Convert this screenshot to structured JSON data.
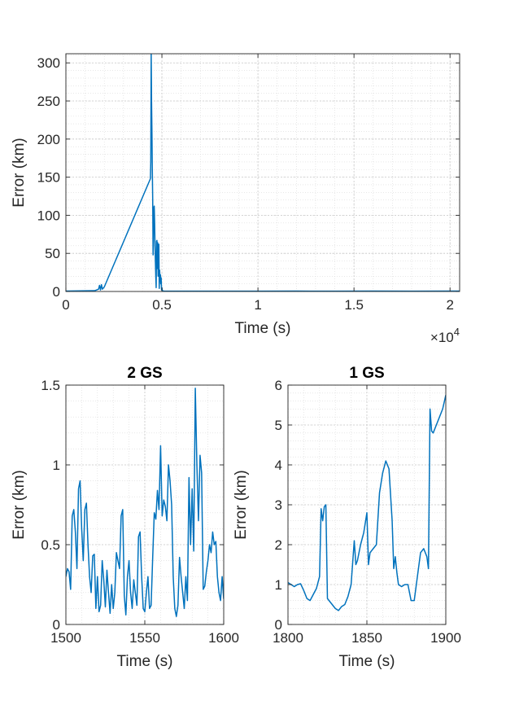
{
  "colors": {
    "series": "#0072BD",
    "axis": "#262626",
    "grid": "#d9d9d9",
    "background": "#ffffff"
  },
  "chart_data": [
    {
      "type": "line",
      "title": "",
      "xlabel": "Time (s)",
      "ylabel": "Error (km)",
      "xlim": [
        0,
        20500
      ],
      "ylim": [
        0,
        312
      ],
      "xticks": [
        0,
        5000,
        10000,
        15000,
        20000
      ],
      "xtick_labels": [
        "0",
        "0.5",
        "1",
        "1.5",
        "2"
      ],
      "x_exponent_label": "×10",
      "x_exponent_power": "4",
      "yticks": [
        0,
        50,
        100,
        150,
        200,
        250,
        300
      ],
      "ytick_labels": [
        "0",
        "50",
        "100",
        "150",
        "200",
        "250",
        "300"
      ],
      "grid": true,
      "minor_grid": true,
      "series": [
        {
          "x": [
            0,
            1500,
            1700,
            1750,
            1800,
            1850,
            1900,
            2000,
            4400,
            4420,
            4440,
            4460,
            4480,
            4500,
            4520,
            4540,
            4560,
            4580,
            4600,
            4620,
            4640,
            4660,
            4680,
            4700,
            4720,
            4740,
            4760,
            4780,
            4800,
            4820,
            4840,
            4860,
            4880,
            4900,
            4920,
            4940,
            4960,
            4980,
            5000,
            5020,
            5100,
            6000,
            8000,
            10000,
            12000,
            14000,
            16000,
            18000,
            20000,
            20500
          ],
          "y": [
            0.5,
            1,
            3,
            8,
            2,
            9,
            3,
            6,
            148,
            170,
            312,
            250,
            210,
            160,
            120,
            48,
            70,
            110,
            112,
            90,
            60,
            40,
            20,
            5,
            66,
            67,
            30,
            64,
            20,
            40,
            62,
            4,
            28,
            14,
            22,
            10,
            18,
            2,
            5,
            1,
            0.5,
            0.4,
            0.4,
            0.4,
            0.5,
            0.4,
            0.5,
            0.4,
            0.5,
            0.5
          ]
        }
      ]
    },
    {
      "type": "line",
      "title": "2 GS",
      "xlabel": "Time (s)",
      "ylabel": "Error (km)",
      "xlim": [
        1500,
        1600
      ],
      "ylim": [
        0,
        1.5
      ],
      "xticks": [
        1500,
        1550,
        1600
      ],
      "xtick_labels": [
        "1500",
        "1550",
        "1600"
      ],
      "yticks": [
        0,
        0.5,
        1,
        1.5
      ],
      "ytick_labels": [
        "0",
        "0.5",
        "1",
        "1.5"
      ],
      "grid": true,
      "minor_grid": true,
      "series": [
        {
          "x": [
            1500,
            1501,
            1502,
            1503,
            1504,
            1505,
            1506,
            1507,
            1508,
            1509,
            1510,
            1511,
            1512,
            1513,
            1514,
            1515,
            1516,
            1517,
            1518,
            1519,
            1520,
            1521,
            1522,
            1523,
            1524,
            1525,
            1526,
            1527,
            1528,
            1529,
            1530,
            1531,
            1532,
            1533,
            1534,
            1535,
            1536,
            1537,
            1538,
            1539,
            1540,
            1541,
            1542,
            1543,
            1544,
            1545,
            1546,
            1547,
            1548,
            1549,
            1550,
            1551,
            1552,
            1553,
            1554,
            1555,
            1556,
            1557,
            1558,
            1559,
            1560,
            1561,
            1562,
            1563,
            1564,
            1565,
            1566,
            1567,
            1568,
            1569,
            1570,
            1571,
            1572,
            1573,
            1574,
            1575,
            1576,
            1577,
            1578,
            1579,
            1580,
            1581,
            1582,
            1583,
            1584,
            1585,
            1586,
            1587,
            1588,
            1589,
            1590,
            1591,
            1592,
            1593,
            1594,
            1595,
            1596,
            1597,
            1598,
            1599,
            1600
          ],
          "y": [
            0.3,
            0.35,
            0.33,
            0.22,
            0.68,
            0.72,
            0.58,
            0.35,
            0.85,
            0.9,
            0.6,
            0.4,
            0.72,
            0.76,
            0.5,
            0.3,
            0.2,
            0.43,
            0.44,
            0.1,
            0.3,
            0.08,
            0.12,
            0.4,
            0.28,
            0.11,
            0.34,
            0.2,
            0.07,
            0.25,
            0.1,
            0.2,
            0.45,
            0.4,
            0.35,
            0.68,
            0.72,
            0.18,
            0.06,
            0.3,
            0.4,
            0.2,
            0.1,
            0.28,
            0.2,
            0.12,
            0.55,
            0.58,
            0.3,
            0.1,
            0.08,
            0.2,
            0.3,
            0.1,
            0.12,
            0.42,
            0.7,
            0.66,
            0.84,
            0.72,
            1.12,
            0.68,
            0.78,
            0.74,
            0.65,
            1.0,
            0.9,
            0.75,
            0.3,
            0.1,
            0.05,
            0.12,
            0.42,
            0.3,
            0.2,
            0.1,
            0.3,
            0.15,
            0.92,
            0.5,
            0.85,
            0.46,
            1.48,
            1.0,
            0.65,
            1.06,
            0.95,
            0.22,
            0.24,
            0.33,
            0.4,
            0.5,
            0.45,
            0.58,
            0.5,
            0.52,
            0.3,
            0.2,
            0.15,
            0.3,
            0.16
          ]
        }
      ]
    },
    {
      "type": "line",
      "title": "1 GS",
      "xlabel": "Time (s)",
      "ylabel": "Error (km)",
      "xlim": [
        1800,
        1900
      ],
      "ylim": [
        0,
        6
      ],
      "xticks": [
        1800,
        1850,
        1900
      ],
      "xtick_labels": [
        "1800",
        "1850",
        "1900"
      ],
      "yticks": [
        0,
        1,
        2,
        3,
        4,
        5,
        6
      ],
      "ytick_labels": [
        "0",
        "1",
        "2",
        "3",
        "4",
        "5",
        "6"
      ],
      "grid": true,
      "minor_grid": true,
      "series": [
        {
          "x": [
            1800,
            1802,
            1804,
            1806,
            1808,
            1810,
            1812,
            1814,
            1816,
            1818,
            1820,
            1821,
            1822,
            1823,
            1824,
            1825,
            1826,
            1828,
            1830,
            1832,
            1834,
            1836,
            1838,
            1840,
            1842,
            1843,
            1844,
            1846,
            1848,
            1850,
            1851,
            1852,
            1854,
            1856,
            1858,
            1860,
            1862,
            1864,
            1866,
            1867,
            1868,
            1869,
            1870,
            1872,
            1874,
            1876,
            1878,
            1880,
            1882,
            1884,
            1886,
            1888,
            1889,
            1890,
            1891,
            1892,
            1894,
            1896,
            1898,
            1900
          ],
          "y": [
            1.05,
            1.0,
            0.95,
            1.0,
            1.02,
            0.85,
            0.65,
            0.6,
            0.75,
            0.9,
            1.2,
            2.9,
            2.6,
            2.95,
            3.0,
            0.65,
            0.6,
            0.5,
            0.4,
            0.35,
            0.45,
            0.5,
            0.7,
            1.0,
            2.1,
            1.5,
            1.6,
            2.0,
            2.3,
            2.8,
            1.5,
            1.8,
            1.9,
            2.0,
            3.3,
            3.8,
            4.1,
            3.9,
            2.6,
            1.4,
            1.7,
            1.3,
            1.0,
            0.95,
            1.0,
            1.0,
            0.6,
            0.6,
            1.2,
            1.8,
            1.9,
            1.7,
            1.4,
            5.4,
            4.85,
            4.8,
            5.0,
            5.2,
            5.4,
            5.75
          ]
        }
      ]
    }
  ]
}
